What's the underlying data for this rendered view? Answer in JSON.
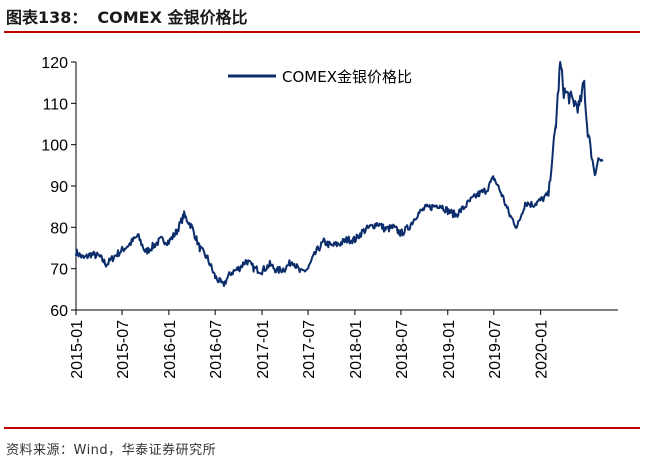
{
  "figure": {
    "title_prefix": "图表138：",
    "title": "COMEX 金银价格比",
    "source": "资料来源：Wind，华泰证券研究所"
  },
  "colors": {
    "line": "#0b2d6b",
    "rule": "#c00000",
    "axis": "#000000"
  },
  "chart_data": {
    "type": "line",
    "title": "",
    "xlabel": "",
    "ylabel": "",
    "ylim": [
      60,
      120
    ],
    "yticks": [
      60,
      70,
      80,
      90,
      100,
      110,
      120
    ],
    "xlim": [
      "2015-01-01",
      "2020-10-31"
    ],
    "xtick_labels": [
      "2015-01",
      "2015-07",
      "2016-01",
      "2016-07",
      "2017-01",
      "2017-07",
      "2018-01",
      "2018-07",
      "2019-01",
      "2019-07",
      "2020-01"
    ],
    "legend": {
      "position": "top-center",
      "entries": [
        "COMEX金银价格比"
      ]
    },
    "grid": false,
    "series": [
      {
        "name": "COMEX金银价格比",
        "color": "#0b2d6b",
        "points": [
          [
            "2015-01-01",
            74
          ],
          [
            "2015-02-01",
            72.5
          ],
          [
            "2015-03-01",
            73.5
          ],
          [
            "2015-04-01",
            73
          ],
          [
            "2015-05-01",
            71
          ],
          [
            "2015-06-01",
            73
          ],
          [
            "2015-07-01",
            74.5
          ],
          [
            "2015-08-01",
            76
          ],
          [
            "2015-09-01",
            78
          ],
          [
            "2015-10-01",
            74
          ],
          [
            "2015-11-01",
            75.5
          ],
          [
            "2015-12-01",
            77
          ],
          [
            "2016-01-01",
            76.5
          ],
          [
            "2016-02-01",
            79
          ],
          [
            "2016-03-01",
            83
          ],
          [
            "2016-04-01",
            80
          ],
          [
            "2016-05-01",
            75
          ],
          [
            "2016-06-01",
            72.5
          ],
          [
            "2016-07-01",
            68
          ],
          [
            "2016-08-01",
            66
          ],
          [
            "2016-09-01",
            69
          ],
          [
            "2016-10-01",
            70
          ],
          [
            "2016-11-01",
            72
          ],
          [
            "2016-12-01",
            70
          ],
          [
            "2017-01-01",
            69.5
          ],
          [
            "2017-02-01",
            71
          ],
          [
            "2017-03-01",
            69.5
          ],
          [
            "2017-04-01",
            70
          ],
          [
            "2017-05-01",
            72
          ],
          [
            "2017-06-01",
            69
          ],
          [
            "2017-07-01",
            70
          ],
          [
            "2017-08-01",
            74
          ],
          [
            "2017-09-01",
            76.5
          ],
          [
            "2017-10-01",
            75.5
          ],
          [
            "2017-11-01",
            76
          ],
          [
            "2017-12-01",
            77
          ],
          [
            "2018-01-01",
            77
          ],
          [
            "2018-02-01",
            79
          ],
          [
            "2018-03-01",
            80
          ],
          [
            "2018-04-01",
            81
          ],
          [
            "2018-05-01",
            79.5
          ],
          [
            "2018-06-01",
            80
          ],
          [
            "2018-07-01",
            78.5
          ],
          [
            "2018-08-01",
            80
          ],
          [
            "2018-09-01",
            83
          ],
          [
            "2018-10-01",
            84.5
          ],
          [
            "2018-11-01",
            85
          ],
          [
            "2018-12-01",
            85.5
          ],
          [
            "2019-01-01",
            84
          ],
          [
            "2019-02-01",
            83
          ],
          [
            "2019-03-01",
            84.5
          ],
          [
            "2019-04-01",
            86.5
          ],
          [
            "2019-05-01",
            88
          ],
          [
            "2019-06-01",
            89
          ],
          [
            "2019-07-01",
            92
          ],
          [
            "2019-08-01",
            88
          ],
          [
            "2019-09-01",
            83
          ],
          [
            "2019-10-01",
            80
          ],
          [
            "2019-11-01",
            86
          ],
          [
            "2019-12-01",
            85.5
          ],
          [
            "2020-01-01",
            86.5
          ],
          [
            "2020-02-01",
            88
          ],
          [
            "2020-03-01",
            105
          ],
          [
            "2020-03-18",
            120
          ],
          [
            "2020-04-01",
            113
          ],
          [
            "2020-05-01",
            111
          ],
          [
            "2020-06-01",
            109
          ],
          [
            "2020-06-20",
            115
          ],
          [
            "2020-07-01",
            105
          ],
          [
            "2020-07-20",
            97
          ],
          [
            "2020-08-01",
            93
          ],
          [
            "2020-08-15",
            96.5
          ],
          [
            "2020-09-01",
            96
          ]
        ]
      }
    ]
  }
}
